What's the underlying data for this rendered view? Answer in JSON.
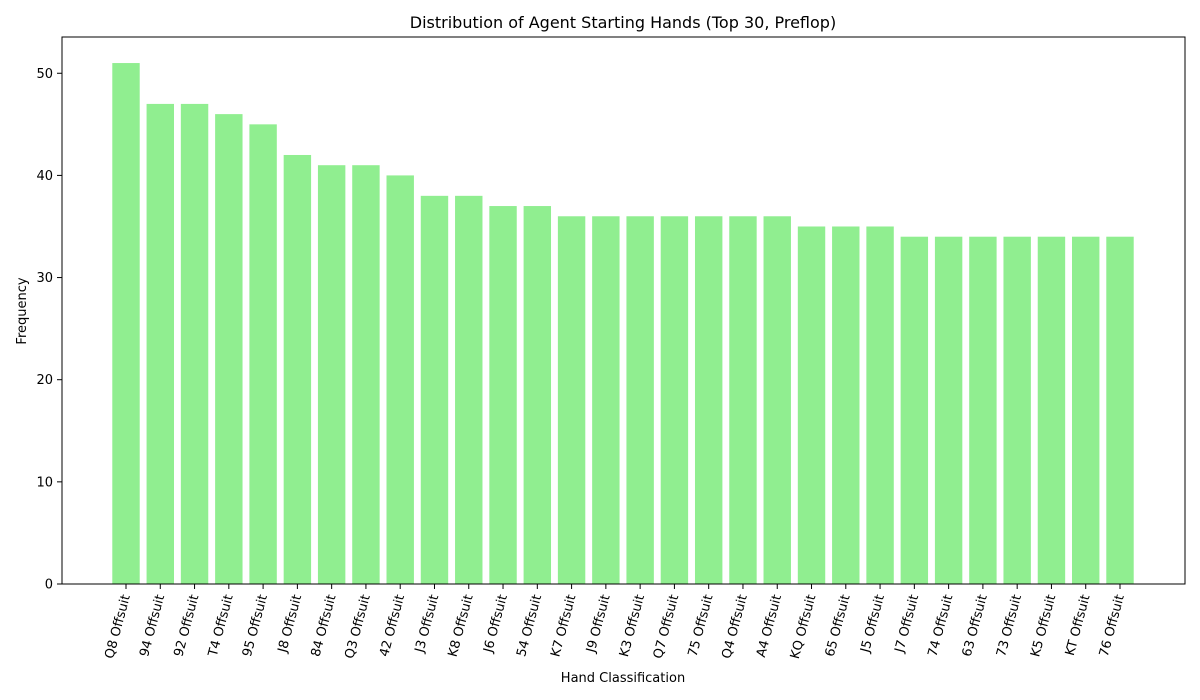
{
  "chart_data": {
    "type": "bar",
    "title": "Distribution of Agent Starting Hands (Top 30, Preflop)",
    "xlabel": "Hand Classification",
    "ylabel": "Frequency",
    "ylim": [
      0,
      53.55
    ],
    "yticks": [
      0,
      10,
      20,
      30,
      40,
      50
    ],
    "grid": false,
    "bar_color": "#90ee90",
    "categories": [
      "Q8 Offsuit",
      "94 Offsuit",
      "92 Offsuit",
      "T4 Offsuit",
      "95 Offsuit",
      "J8 Offsuit",
      "84 Offsuit",
      "Q3 Offsuit",
      "42 Offsuit",
      "J3 Offsuit",
      "K8 Offsuit",
      "J6 Offsuit",
      "54 Offsuit",
      "K7 Offsuit",
      "J9 Offsuit",
      "K3 Offsuit",
      "Q7 Offsuit",
      "75 Offsuit",
      "Q4 Offsuit",
      "A4 Offsuit",
      "KQ Offsuit",
      "65 Offsuit",
      "J5 Offsuit",
      "J7 Offsuit",
      "74 Offsuit",
      "63 Offsuit",
      "73 Offsuit",
      "K5 Offsuit",
      "KT Offsuit",
      "76 Offsuit"
    ],
    "values": [
      51,
      47,
      47,
      46,
      45,
      42,
      41,
      41,
      40,
      38,
      38,
      37,
      37,
      36,
      36,
      36,
      36,
      36,
      36,
      36,
      35,
      35,
      35,
      34,
      34,
      34,
      34,
      34,
      34,
      34
    ]
  }
}
